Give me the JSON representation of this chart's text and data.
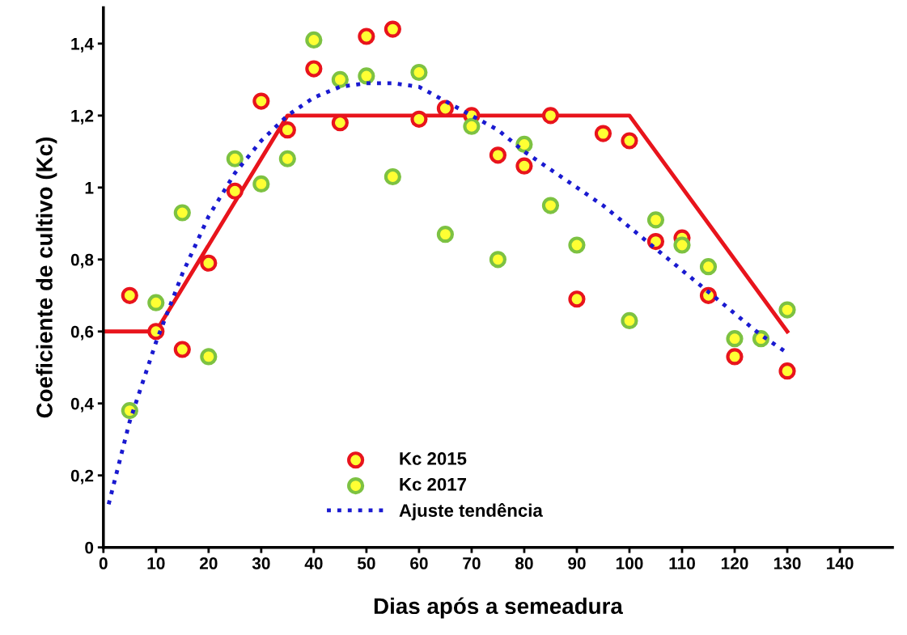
{
  "chart_data": {
    "type": "scatter",
    "xlabel": "Dias após a semeadura",
    "ylabel": "Coeficiente de cultivo (Kc)",
    "xlim": [
      0,
      150
    ],
    "ylim": [
      0,
      1.5
    ],
    "xticks": [
      0,
      10,
      20,
      30,
      40,
      50,
      60,
      70,
      80,
      90,
      100,
      110,
      120,
      130,
      140
    ],
    "yticks": [
      0,
      {
        "value": 0.2,
        "label": "0,2"
      },
      {
        "value": 0.4,
        "label": "0,4"
      },
      {
        "value": 0.6,
        "label": "0,6"
      },
      {
        "value": 0.8,
        "label": "0,8"
      },
      1,
      {
        "value": 1.2,
        "label": "1,2"
      },
      {
        "value": 1.4,
        "label": "1,4"
      }
    ],
    "grid": false,
    "legend": "bottom",
    "series": [
      {
        "name": "Kc 2015",
        "marker": "circle",
        "color": "#e8141c",
        "x": [
          5,
          10,
          15,
          20,
          25,
          30,
          35,
          40,
          45,
          50,
          55,
          60,
          65,
          70,
          75,
          80,
          85,
          90,
          95,
          100,
          105,
          110,
          115,
          120,
          130
        ],
        "values": [
          0.7,
          0.6,
          0.55,
          0.79,
          0.99,
          1.24,
          1.16,
          1.33,
          1.18,
          1.42,
          1.44,
          1.19,
          1.22,
          1.2,
          1.09,
          1.06,
          1.2,
          0.69,
          1.15,
          1.13,
          0.85,
          0.86,
          0.7,
          0.53,
          0.49
        ]
      },
      {
        "name": "Kc 2017",
        "marker": "circle",
        "color": "#7dc242",
        "x": [
          5,
          10,
          15,
          20,
          25,
          30,
          35,
          40,
          45,
          50,
          55,
          60,
          65,
          70,
          75,
          80,
          85,
          90,
          100,
          105,
          110,
          115,
          120,
          125,
          130
        ],
        "values": [
          0.38,
          0.68,
          0.93,
          0.53,
          1.08,
          1.01,
          1.08,
          1.41,
          1.3,
          1.31,
          1.03,
          1.32,
          0.87,
          1.17,
          0.8,
          1.12,
          0.95,
          0.84,
          0.63,
          0.91,
          0.84,
          0.78,
          0.58,
          0.58,
          0.66
        ]
      },
      {
        "type": "line",
        "color": "#e8141c",
        "line_style": "solid",
        "x": [
          0,
          10,
          35,
          100,
          130
        ],
        "values": [
          0.6,
          0.6,
          1.2,
          1.2,
          0.6
        ]
      },
      {
        "name": "Ajuste tendência",
        "type": "line",
        "color": "#1a1ad0",
        "line_style": "dotted",
        "x": [
          1,
          5,
          10,
          15,
          20,
          25,
          30,
          35,
          40,
          45,
          50,
          55,
          60,
          65,
          70,
          75,
          80,
          85,
          90,
          95,
          100,
          105,
          110,
          115,
          120,
          125,
          130
        ],
        "values": [
          0.12,
          0.35,
          0.57,
          0.76,
          0.92,
          1.04,
          1.13,
          1.2,
          1.25,
          1.28,
          1.29,
          1.29,
          1.28,
          1.24,
          1.2,
          1.16,
          1.1,
          1.05,
          1.0,
          0.95,
          0.89,
          0.83,
          0.77,
          0.71,
          0.65,
          0.59,
          0.54
        ]
      }
    ]
  }
}
